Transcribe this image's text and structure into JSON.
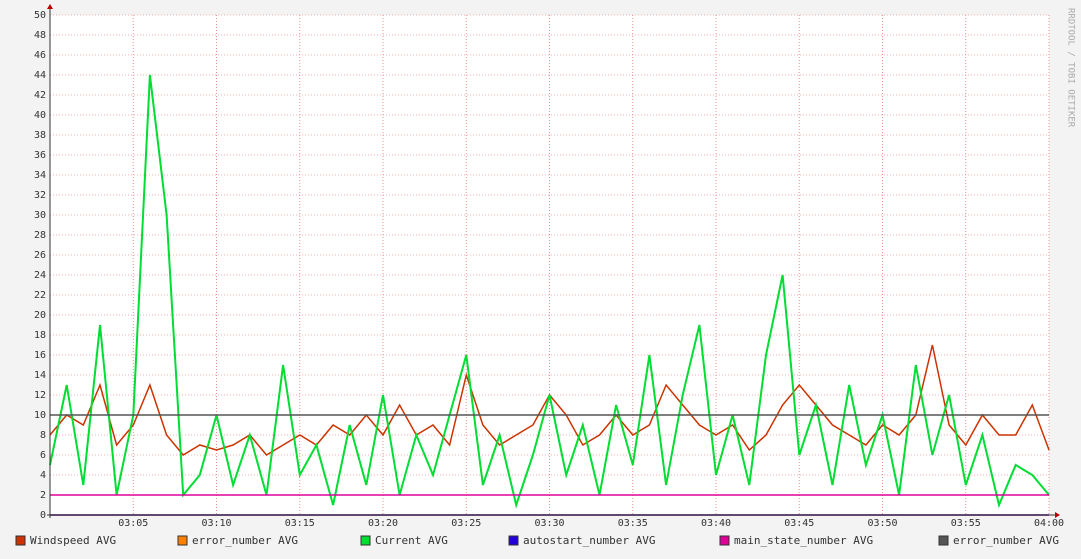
{
  "chart_data": {
    "type": "line",
    "x": [
      "03:00",
      "03:01",
      "03:02",
      "03:03",
      "03:04",
      "03:05",
      "03:06",
      "03:07",
      "03:08",
      "03:09",
      "03:10",
      "03:11",
      "03:12",
      "03:13",
      "03:14",
      "03:15",
      "03:16",
      "03:17",
      "03:18",
      "03:19",
      "03:20",
      "03:21",
      "03:22",
      "03:23",
      "03:24",
      "03:25",
      "03:26",
      "03:27",
      "03:28",
      "03:29",
      "03:30",
      "03:31",
      "03:32",
      "03:33",
      "03:34",
      "03:35",
      "03:36",
      "03:37",
      "03:38",
      "03:39",
      "03:40",
      "03:41",
      "03:42",
      "03:43",
      "03:44",
      "03:45",
      "03:46",
      "03:47",
      "03:48",
      "03:49",
      "03:50",
      "03:51",
      "03:52",
      "03:53",
      "03:54",
      "03:55",
      "03:56",
      "03:57",
      "03:58",
      "03:59",
      "04:00"
    ],
    "xlim": [
      "03:00",
      "04:00"
    ],
    "xticks": [
      "03:05",
      "03:10",
      "03:15",
      "03:20",
      "03:25",
      "03:30",
      "03:35",
      "03:40",
      "03:45",
      "03:50",
      "03:55",
      "04:00"
    ],
    "ylim": [
      0,
      50
    ],
    "yticks": [
      0,
      2,
      4,
      6,
      8,
      10,
      12,
      14,
      16,
      18,
      20,
      22,
      24,
      26,
      28,
      30,
      32,
      34,
      36,
      38,
      40,
      42,
      44,
      46,
      48,
      50
    ],
    "grid": true,
    "watermark": "RRDTOOL / TOBI OETIKER",
    "series": [
      {
        "name": "Windspeed AVG",
        "color": "#cc3300",
        "values": [
          8,
          10,
          9,
          13,
          7,
          9,
          13,
          8,
          6,
          7,
          6.5,
          7,
          8,
          6,
          7,
          8,
          7,
          9,
          8,
          10,
          8,
          11,
          8,
          9,
          7,
          14,
          9,
          7,
          8,
          9,
          12,
          10,
          7,
          8,
          10,
          8,
          9,
          13,
          11,
          9,
          8,
          9,
          6.5,
          8,
          11,
          13,
          11,
          9,
          8,
          7,
          9,
          8,
          10,
          17,
          9,
          7,
          10,
          8,
          8,
          11,
          6.5
        ]
      },
      {
        "name": "error_number AVG",
        "color": "#ff8000",
        "values": [
          0,
          0,
          0,
          0,
          0,
          0,
          0,
          0,
          0,
          0,
          0,
          0,
          0,
          0,
          0,
          0,
          0,
          0,
          0,
          0,
          0,
          0,
          0,
          0,
          0,
          0,
          0,
          0,
          0,
          0,
          0,
          0,
          0,
          0,
          0,
          0,
          0,
          0,
          0,
          0,
          0,
          0,
          0,
          0,
          0,
          0,
          0,
          0,
          0,
          0,
          0,
          0,
          0,
          0,
          0,
          0,
          0,
          0,
          0,
          0,
          0
        ]
      },
      {
        "name": "Current AVG",
        "color": "#00dd33",
        "values": [
          5,
          13,
          3,
          19,
          2,
          10,
          44,
          30,
          2,
          4,
          10,
          3,
          8,
          2,
          15,
          4,
          7,
          1,
          9,
          3,
          12,
          2,
          8,
          4,
          10,
          16,
          3,
          8,
          1,
          6,
          12,
          4,
          9,
          2,
          11,
          5,
          16,
          3,
          12,
          19,
          4,
          10,
          3,
          16,
          24,
          6,
          11,
          3,
          13,
          5,
          10,
          2,
          15,
          6,
          12,
          3,
          8,
          1,
          5,
          4,
          2
        ]
      },
      {
        "name": "autostart_number AVG",
        "color": "#2200dd",
        "values": [
          0,
          0,
          0,
          0,
          0,
          0,
          0,
          0,
          0,
          0,
          0,
          0,
          0,
          0,
          0,
          0,
          0,
          0,
          0,
          0,
          0,
          0,
          0,
          0,
          0,
          0,
          0,
          0,
          0,
          0,
          0,
          0,
          0,
          0,
          0,
          0,
          0,
          0,
          0,
          0,
          0,
          0,
          0,
          0,
          0,
          0,
          0,
          0,
          0,
          0,
          0,
          0,
          0,
          0,
          0,
          0,
          0,
          0,
          0,
          0,
          0
        ]
      },
      {
        "name": "main_state_number AVG",
        "color": "#dd0099",
        "values": [
          2,
          2,
          2,
          2,
          2,
          2,
          2,
          2,
          2,
          2,
          2,
          2,
          2,
          2,
          2,
          2,
          2,
          2,
          2,
          2,
          2,
          2,
          2,
          2,
          2,
          2,
          2,
          2,
          2,
          2,
          2,
          2,
          2,
          2,
          2,
          2,
          2,
          2,
          2,
          2,
          2,
          2,
          2,
          2,
          2,
          2,
          2,
          2,
          2,
          2,
          2,
          2,
          2,
          2,
          2,
          2,
          2,
          2,
          2,
          2,
          2
        ]
      },
      {
        "name": "error_number AVG",
        "color": "#555555",
        "values": [
          10,
          10,
          10,
          10,
          10,
          10,
          10,
          10,
          10,
          10,
          10,
          10,
          10,
          10,
          10,
          10,
          10,
          10,
          10,
          10,
          10,
          10,
          10,
          10,
          10,
          10,
          10,
          10,
          10,
          10,
          10,
          10,
          10,
          10,
          10,
          10,
          10,
          10,
          10,
          10,
          10,
          10,
          10,
          10,
          10,
          10,
          10,
          10,
          10,
          10,
          10,
          10,
          10,
          10,
          10,
          10,
          10,
          10,
          10,
          10,
          10
        ]
      }
    ]
  }
}
